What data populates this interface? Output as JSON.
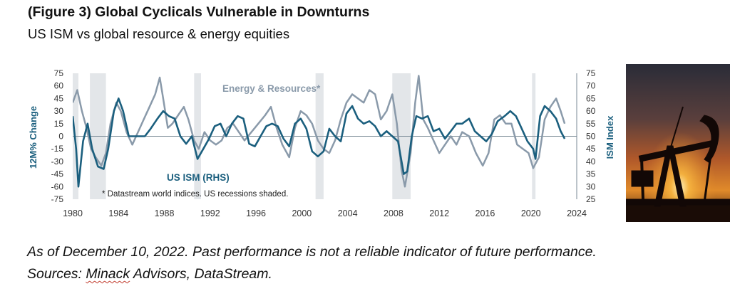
{
  "header": {
    "title": "(Figure 3) Global Cyclicals Vulnerable in Downturns",
    "subtitle": "US ISM vs global resource & energy equities"
  },
  "chart_data": {
    "type": "line",
    "x_ticks": [
      "1980",
      "1984",
      "1988",
      "1992",
      "1996",
      "2000",
      "2004",
      "2008",
      "2012",
      "2016",
      "2020",
      "2024"
    ],
    "xlim": [
      1980,
      2024
    ],
    "left_axis": {
      "label": "12M% Change",
      "ylim": [
        -75,
        75
      ],
      "ticks": [
        75,
        60,
        45,
        30,
        15,
        0,
        -15,
        -30,
        -45,
        -60,
        -75
      ]
    },
    "right_axis": {
      "label": "ISM Index",
      "ylim": [
        25,
        75
      ],
      "ticks": [
        75,
        70,
        65,
        60,
        55,
        50,
        45,
        40,
        35,
        30,
        25
      ]
    },
    "zero_line": true,
    "recessions": [
      [
        1980.0,
        1980.5
      ],
      [
        1981.5,
        1982.9
      ],
      [
        1990.6,
        1991.2
      ],
      [
        2001.2,
        2001.9
      ],
      [
        2007.9,
        2009.5
      ],
      [
        2020.1,
        2020.4
      ]
    ],
    "annotations": {
      "energy_label": "Energy & Resources*",
      "ism_label": "US ISM (RHS)",
      "footnote": "* Datastream world indices. US recessions shaded."
    },
    "series": [
      {
        "name": "Energy & Resources*",
        "axis": "left",
        "color": "#8a9aaa",
        "points": [
          [
            1980.0,
            40
          ],
          [
            1980.4,
            55
          ],
          [
            1980.8,
            30
          ],
          [
            1981.2,
            10
          ],
          [
            1981.6,
            -15
          ],
          [
            1982.0,
            -25
          ],
          [
            1982.5,
            -35
          ],
          [
            1982.9,
            -20
          ],
          [
            1983.3,
            15
          ],
          [
            1983.8,
            40
          ],
          [
            1984.2,
            30
          ],
          [
            1984.7,
            5
          ],
          [
            1985.2,
            -10
          ],
          [
            1985.7,
            5
          ],
          [
            1986.2,
            20
          ],
          [
            1986.7,
            35
          ],
          [
            1987.2,
            50
          ],
          [
            1987.6,
            70
          ],
          [
            1987.9,
            45
          ],
          [
            1988.3,
            10
          ],
          [
            1988.7,
            15
          ],
          [
            1989.2,
            25
          ],
          [
            1989.7,
            35
          ],
          [
            1990.1,
            20
          ],
          [
            1990.6,
            -5
          ],
          [
            1991.0,
            -15
          ],
          [
            1991.5,
            5
          ],
          [
            1992.0,
            -5
          ],
          [
            1992.5,
            -10
          ],
          [
            1993.0,
            -5
          ],
          [
            1993.5,
            10
          ],
          [
            1994.0,
            15
          ],
          [
            1994.5,
            5
          ],
          [
            1995.0,
            -5
          ],
          [
            1995.6,
            5
          ],
          [
            1996.2,
            15
          ],
          [
            1996.8,
            25
          ],
          [
            1997.3,
            35
          ],
          [
            1997.8,
            10
          ],
          [
            1998.3,
            -10
          ],
          [
            1998.9,
            -25
          ],
          [
            1999.4,
            10
          ],
          [
            1999.9,
            30
          ],
          [
            2000.4,
            25
          ],
          [
            2000.9,
            15
          ],
          [
            2001.4,
            -5
          ],
          [
            2001.9,
            -15
          ],
          [
            2002.4,
            -20
          ],
          [
            2002.9,
            -5
          ],
          [
            2003.4,
            20
          ],
          [
            2003.9,
            40
          ],
          [
            2004.4,
            50
          ],
          [
            2004.9,
            45
          ],
          [
            2005.4,
            40
          ],
          [
            2005.9,
            55
          ],
          [
            2006.4,
            50
          ],
          [
            2006.9,
            20
          ],
          [
            2007.4,
            30
          ],
          [
            2007.9,
            50
          ],
          [
            2008.3,
            15
          ],
          [
            2008.7,
            -40
          ],
          [
            2009.0,
            -60
          ],
          [
            2009.5,
            -20
          ],
          [
            2009.9,
            40
          ],
          [
            2010.2,
            72
          ],
          [
            2010.6,
            20
          ],
          [
            2011.0,
            10
          ],
          [
            2011.5,
            -5
          ],
          [
            2012.0,
            -20
          ],
          [
            2012.5,
            -10
          ],
          [
            2013.0,
            0
          ],
          [
            2013.5,
            -10
          ],
          [
            2014.0,
            5
          ],
          [
            2014.6,
            0
          ],
          [
            2015.2,
            -20
          ],
          [
            2015.8,
            -35
          ],
          [
            2016.3,
            -20
          ],
          [
            2016.8,
            20
          ],
          [
            2017.3,
            25
          ],
          [
            2017.8,
            15
          ],
          [
            2018.3,
            15
          ],
          [
            2018.8,
            -10
          ],
          [
            2019.3,
            -15
          ],
          [
            2019.8,
            -20
          ],
          [
            2020.2,
            -38
          ],
          [
            2020.7,
            -25
          ],
          [
            2021.2,
            20
          ],
          [
            2021.7,
            35
          ],
          [
            2022.2,
            45
          ],
          [
            2022.6,
            30
          ],
          [
            2022.95,
            15
          ]
        ]
      },
      {
        "name": "US ISM (RHS)",
        "axis": "right",
        "color": "#1b5f7e",
        "points": [
          [
            1980.0,
            58
          ],
          [
            1980.3,
            45
          ],
          [
            1980.5,
            30
          ],
          [
            1980.9,
            48
          ],
          [
            1981.3,
            55
          ],
          [
            1981.7,
            45
          ],
          [
            1982.2,
            38
          ],
          [
            1982.7,
            37
          ],
          [
            1983.1,
            45
          ],
          [
            1983.6,
            60
          ],
          [
            1984.0,
            65
          ],
          [
            1984.4,
            60
          ],
          [
            1984.9,
            50
          ],
          [
            1985.3,
            50
          ],
          [
            1985.8,
            50
          ],
          [
            1986.3,
            50
          ],
          [
            1986.8,
            53
          ],
          [
            1987.4,
            57
          ],
          [
            1987.9,
            60
          ],
          [
            1988.4,
            58
          ],
          [
            1988.9,
            57
          ],
          [
            1989.4,
            50
          ],
          [
            1989.9,
            47
          ],
          [
            1990.4,
            50
          ],
          [
            1990.9,
            41
          ],
          [
            1991.4,
            45
          ],
          [
            1991.9,
            49
          ],
          [
            1992.4,
            54
          ],
          [
            1992.9,
            55
          ],
          [
            1993.4,
            50
          ],
          [
            1993.9,
            55
          ],
          [
            1994.4,
            58
          ],
          [
            1994.9,
            57
          ],
          [
            1995.4,
            47
          ],
          [
            1995.9,
            46
          ],
          [
            1996.4,
            50
          ],
          [
            1996.9,
            54
          ],
          [
            1997.4,
            55
          ],
          [
            1997.9,
            54
          ],
          [
            1998.4,
            49
          ],
          [
            1998.9,
            46
          ],
          [
            1999.4,
            55
          ],
          [
            1999.9,
            57
          ],
          [
            2000.4,
            53
          ],
          [
            2000.9,
            44
          ],
          [
            2001.4,
            42
          ],
          [
            2001.9,
            44
          ],
          [
            2002.4,
            53
          ],
          [
            2002.9,
            50
          ],
          [
            2003.4,
            48
          ],
          [
            2003.9,
            59
          ],
          [
            2004.4,
            62
          ],
          [
            2004.9,
            57
          ],
          [
            2005.4,
            55
          ],
          [
            2005.9,
            56
          ],
          [
            2006.4,
            54
          ],
          [
            2006.9,
            50
          ],
          [
            2007.4,
            52
          ],
          [
            2007.9,
            50
          ],
          [
            2008.4,
            48
          ],
          [
            2008.9,
            35
          ],
          [
            2009.2,
            36
          ],
          [
            2009.6,
            50
          ],
          [
            2010.0,
            58
          ],
          [
            2010.5,
            57
          ],
          [
            2011.0,
            58
          ],
          [
            2011.5,
            52
          ],
          [
            2012.0,
            53
          ],
          [
            2012.5,
            49
          ],
          [
            2013.0,
            52
          ],
          [
            2013.5,
            55
          ],
          [
            2014.0,
            55
          ],
          [
            2014.6,
            57
          ],
          [
            2015.1,
            52
          ],
          [
            2015.6,
            50
          ],
          [
            2016.1,
            48
          ],
          [
            2016.6,
            51
          ],
          [
            2017.1,
            56
          ],
          [
            2017.7,
            58
          ],
          [
            2018.2,
            60
          ],
          [
            2018.7,
            58
          ],
          [
            2019.2,
            53
          ],
          [
            2019.7,
            48
          ],
          [
            2020.2,
            45
          ],
          [
            2020.4,
            41
          ],
          [
            2020.8,
            58
          ],
          [
            2021.2,
            62
          ],
          [
            2021.7,
            60
          ],
          [
            2022.2,
            57
          ],
          [
            2022.6,
            52
          ],
          [
            2022.95,
            49
          ]
        ]
      }
    ]
  },
  "footer": {
    "line1": "As of December 10, 2022. Past performance is not a reliable indicator of future performance.",
    "line2_prefix": "Sources: ",
    "line2_name": "Minack",
    "line2_suffix": " Advisors, DataStream."
  }
}
